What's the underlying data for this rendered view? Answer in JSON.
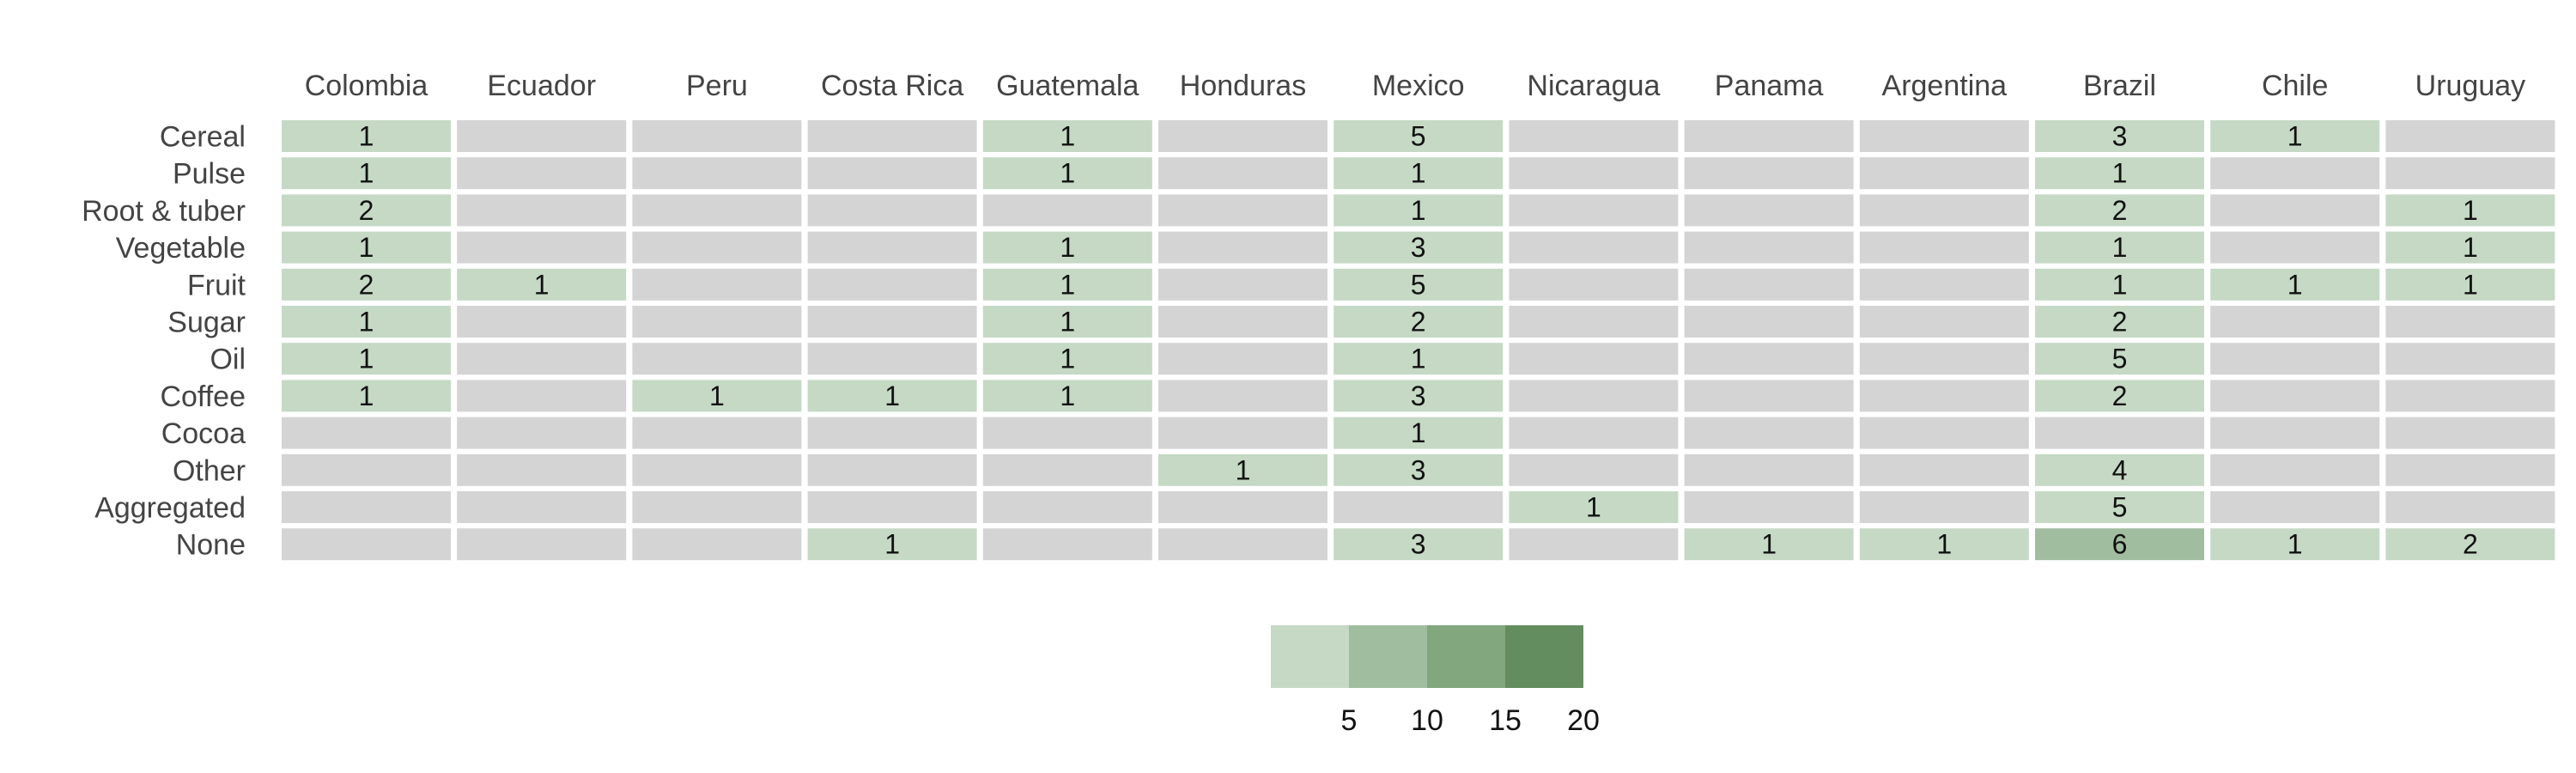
{
  "chart_data": {
    "type": "heatmap",
    "title": "",
    "xlabel": "",
    "ylabel": "",
    "columns": [
      "Colombia",
      "Ecuador",
      "Peru",
      "Costa Rica",
      "Guatemala",
      "Honduras",
      "Mexico",
      "Nicaragua",
      "Panama",
      "Argentina",
      "Brazil",
      "Chile",
      "Uruguay"
    ],
    "rows": [
      "Cereal",
      "Pulse",
      "Root & tuber",
      "Vegetable",
      "Fruit",
      "Sugar",
      "Oil",
      "Coffee",
      "Cocoa",
      "Other",
      "Aggregated",
      "None"
    ],
    "values": [
      [
        1,
        null,
        null,
        null,
        1,
        null,
        5,
        null,
        null,
        null,
        3,
        1,
        null
      ],
      [
        1,
        null,
        null,
        null,
        1,
        null,
        1,
        null,
        null,
        null,
        1,
        null,
        null
      ],
      [
        2,
        null,
        null,
        null,
        null,
        null,
        1,
        null,
        null,
        null,
        2,
        null,
        1
      ],
      [
        1,
        null,
        null,
        null,
        1,
        null,
        3,
        null,
        null,
        null,
        1,
        null,
        1
      ],
      [
        2,
        1,
        null,
        null,
        1,
        null,
        5,
        null,
        null,
        null,
        1,
        1,
        1
      ],
      [
        1,
        null,
        null,
        null,
        1,
        null,
        2,
        null,
        null,
        null,
        2,
        null,
        null
      ],
      [
        1,
        null,
        null,
        null,
        1,
        null,
        1,
        null,
        null,
        null,
        5,
        null,
        null
      ],
      [
        1,
        null,
        1,
        1,
        1,
        null,
        3,
        null,
        null,
        null,
        2,
        null,
        null
      ],
      [
        null,
        null,
        null,
        null,
        null,
        null,
        1,
        null,
        null,
        null,
        null,
        null,
        null
      ],
      [
        null,
        null,
        null,
        null,
        null,
        1,
        3,
        null,
        null,
        null,
        4,
        null,
        null
      ],
      [
        null,
        null,
        null,
        null,
        null,
        null,
        null,
        1,
        null,
        null,
        5,
        null,
        null
      ],
      [
        null,
        null,
        null,
        1,
        null,
        null,
        3,
        null,
        1,
        1,
        6,
        1,
        2
      ]
    ],
    "empty_color": "#d4d4d4",
    "color_bins": [
      {
        "max": 5,
        "color": "#c5d9c5"
      },
      {
        "max": 10,
        "color": "#a1bd9f"
      },
      {
        "max": 15,
        "color": "#82a67e"
      },
      {
        "max": 20,
        "color": "#638d5f"
      }
    ],
    "legend": {
      "position": "bottom-center",
      "ticks": [
        5,
        10,
        15,
        20
      ]
    }
  }
}
